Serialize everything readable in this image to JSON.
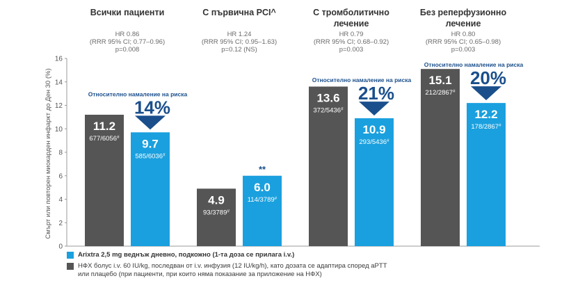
{
  "colors": {
    "fondaparinux": "#1aa0de",
    "control": "#555555",
    "arrow": "#1b4f8c",
    "note_text": "#1b4f8c",
    "header_text": "#333333",
    "axis_text": "#555555"
  },
  "chart_data": {
    "type": "bar",
    "ylabel": "Смърт или повторен миокарден инфаркт до Ден 30 (%)",
    "ylim": [
      0,
      16
    ],
    "yticks": [
      0,
      2,
      4,
      6,
      8,
      10,
      12,
      14,
      16
    ],
    "grid": false,
    "groups": [
      {
        "title": [
          "Всички пациенти"
        ],
        "hr_lines": [
          "HR 0.86",
          "(RRR 95% CI; 0.77–0.96)",
          "p=0.008"
        ],
        "reduction_note": "Относително намаление на риска",
        "reduction_pct": "14%",
        "significance": "",
        "control": {
          "value": 11.2,
          "label": "11.2",
          "counts": "677/6056#"
        },
        "fondaparinux": {
          "value": 9.7,
          "label": "9.7",
          "counts": "585/6036#"
        }
      },
      {
        "title": [
          "С първична PCI^"
        ],
        "hr_lines": [
          "HR 1.24",
          "(RRR 95% CI; 0.95–1.63)",
          "p=0.12 (NS)"
        ],
        "reduction_note": "",
        "reduction_pct": "",
        "significance": "**",
        "control": {
          "value": 4.9,
          "label": "4.9",
          "counts": "93/3789#"
        },
        "fondaparinux": {
          "value": 6.0,
          "label": "6.0",
          "counts": "114/3789#"
        }
      },
      {
        "title": [
          "С тромболитично",
          "лечение"
        ],
        "hr_lines": [
          "HR 0.79",
          "(RRR 95% CI; 0.68–0.92)",
          "p=0.003"
        ],
        "reduction_note": "Относително намаление на риска",
        "reduction_pct": "21%",
        "significance": "",
        "control": {
          "value": 13.6,
          "label": "13.6",
          "counts": "372/5436#"
        },
        "fondaparinux": {
          "value": 10.9,
          "label": "10.9",
          "counts": "293/5436#"
        }
      },
      {
        "title": [
          "Без реперфузионно",
          "лечение"
        ],
        "hr_lines": [
          "HR 0.80",
          "(RRR 95% CI; 0.65–0.98)",
          "p=0.003"
        ],
        "reduction_note": "Относително намаление на риска",
        "reduction_pct": "20%",
        "significance": "",
        "control": {
          "value": 15.1,
          "label": "15.1",
          "counts": "212/2867#"
        },
        "fondaparinux": {
          "value": 12.2,
          "label": "12.2",
          "counts": "178/2867#"
        }
      }
    ]
  },
  "legend": {
    "fondaparinux": "Arixtra 2,5 mg веднъж дневно, подкожно (1-та доза се прилага i.v.)",
    "control_line1": "НФХ болус i.v. 60 IU/kg, последван от i.v. инфузия (12 IU/kg/h), като дозата се адаптира според aPTT",
    "control_line2": "или плацебо (при пациенти, при които няма показание за приложение на НФХ)"
  }
}
